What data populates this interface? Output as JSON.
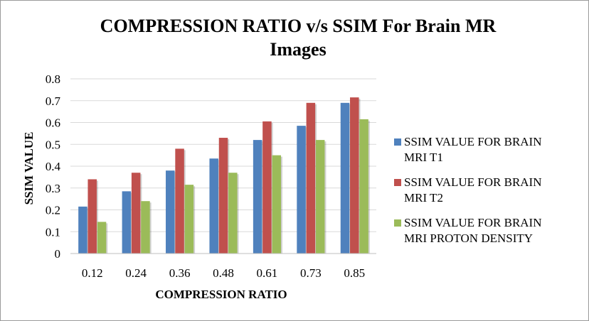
{
  "chart_data": {
    "type": "bar",
    "title": "COMPRESSION RATIO v/s SSIM For Brain MR Images",
    "title_lines": [
      "COMPRESSION RATIO v/s SSIM For Brain MR",
      "Images"
    ],
    "xlabel": "COMPRESSION RATIO",
    "ylabel": "SSIM VALUE",
    "categories": [
      "0.12",
      "0.24",
      "0.36",
      "0.48",
      "0.61",
      "0.73",
      "0.85"
    ],
    "ylim": [
      0,
      0.8
    ],
    "yticks": [
      "0",
      "0.1",
      "0.2",
      "0.3",
      "0.4",
      "0.5",
      "0.6",
      "0.7",
      "0.8"
    ],
    "grid": true,
    "legend_position": "right",
    "series": [
      {
        "name": "SSIM VALUE FOR BRAIN MRI T1",
        "legend_lines": [
          "SSIM VALUE FOR BRAIN",
          "MRI T1"
        ],
        "color": "#4f81bd",
        "values": [
          0.215,
          0.285,
          0.38,
          0.435,
          0.52,
          0.585,
          0.69
        ]
      },
      {
        "name": "SSIM VALUE FOR BRAIN MRI T2",
        "legend_lines": [
          "SSIM VALUE FOR BRAIN",
          "MRI T2"
        ],
        "color": "#c0504d",
        "values": [
          0.34,
          0.37,
          0.48,
          0.53,
          0.605,
          0.69,
          0.715
        ]
      },
      {
        "name": "SSIM VALUE FOR BRAIN MRI PROTON DENSITY",
        "legend_lines": [
          "SSIM VALUE FOR BRAIN",
          "MRI PROTON DENSITY"
        ],
        "color": "#9bbb59",
        "values": [
          0.145,
          0.24,
          0.315,
          0.37,
          0.45,
          0.52,
          0.615
        ]
      }
    ]
  }
}
